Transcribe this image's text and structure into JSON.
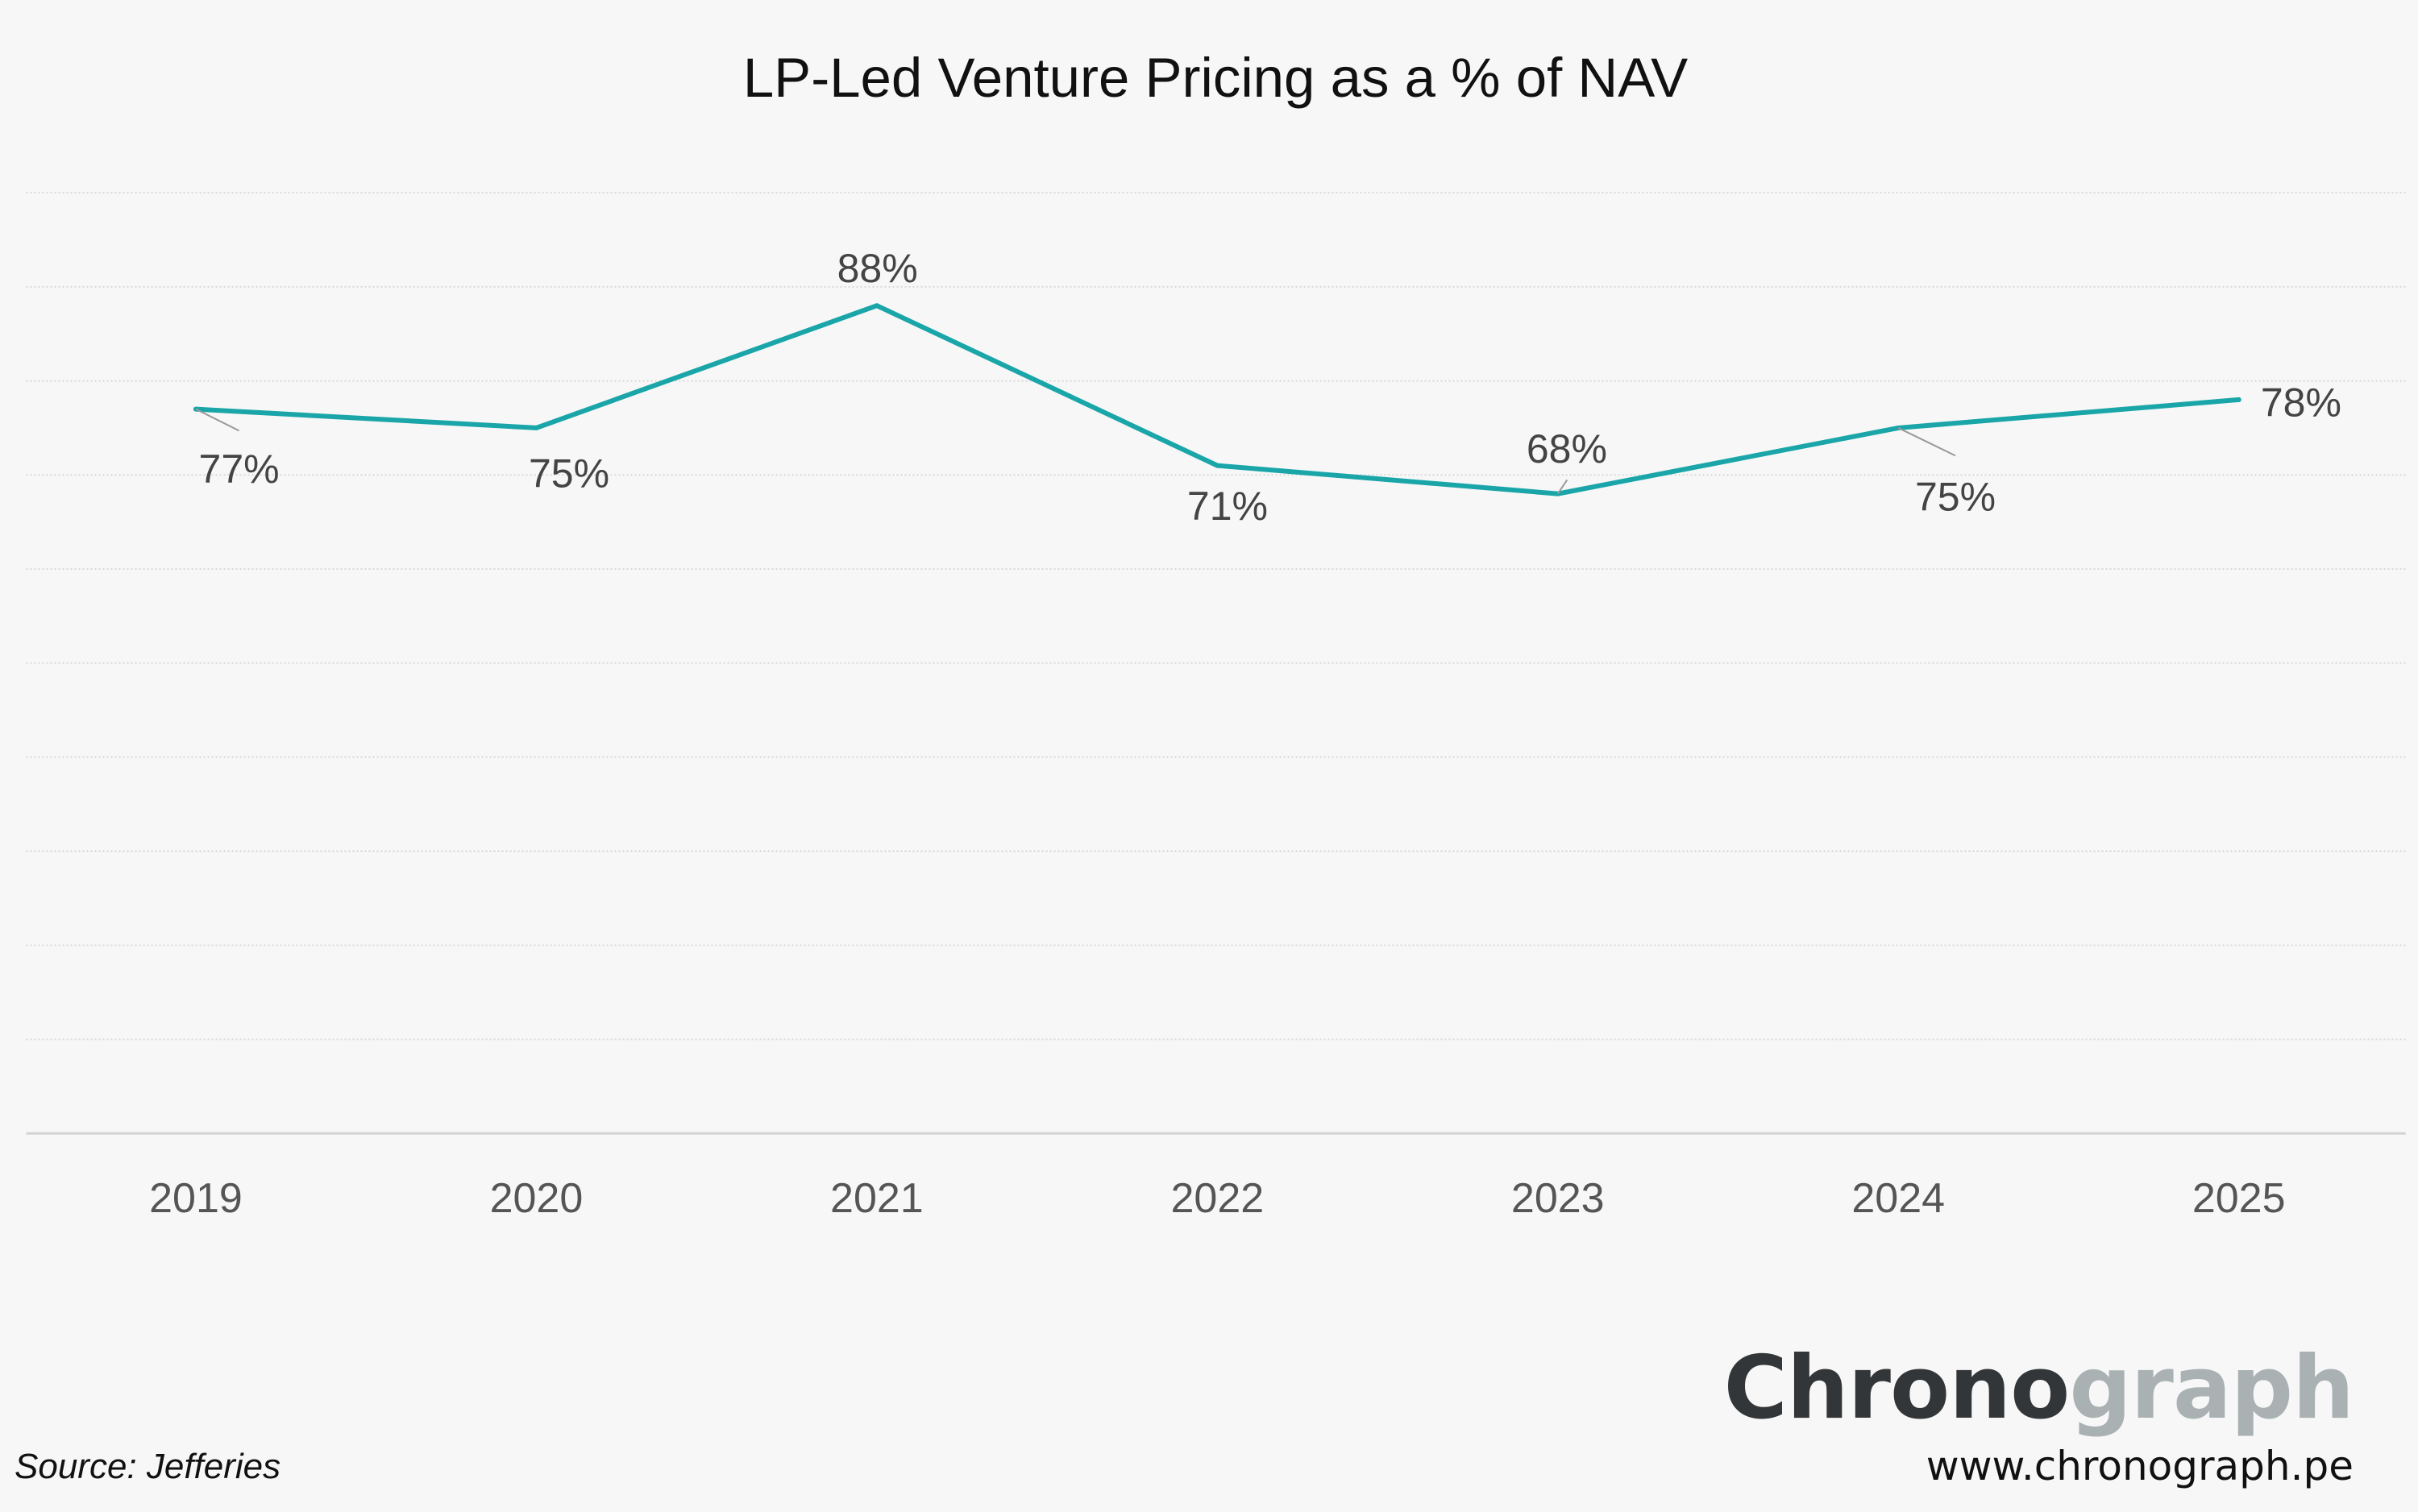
{
  "chart_data": {
    "type": "line",
    "title": "LP-Led Venture Pricing as a % of NAV",
    "categories": [
      "2019",
      "2020",
      "2021",
      "2022",
      "2023",
      "2024",
      "2025"
    ],
    "series": [
      {
        "name": "LP-Led Venture Pricing (% of NAV)",
        "values": [
          77,
          75,
          88,
          71,
          68,
          75,
          78
        ],
        "color": "#1aa6a9"
      }
    ],
    "data_labels": [
      "77%",
      "75%",
      "88%",
      "71%",
      "68%",
      "75%",
      "78%"
    ],
    "xlabel": "",
    "ylabel": "",
    "ylim": [
      0,
      100
    ],
    "grid": true,
    "y_axis_labels_shown": false
  },
  "footer": {
    "source": "Source: Jefferies",
    "logo_dark": "Chrono",
    "logo_light": "graph",
    "url": "www.chronograph.pe"
  }
}
